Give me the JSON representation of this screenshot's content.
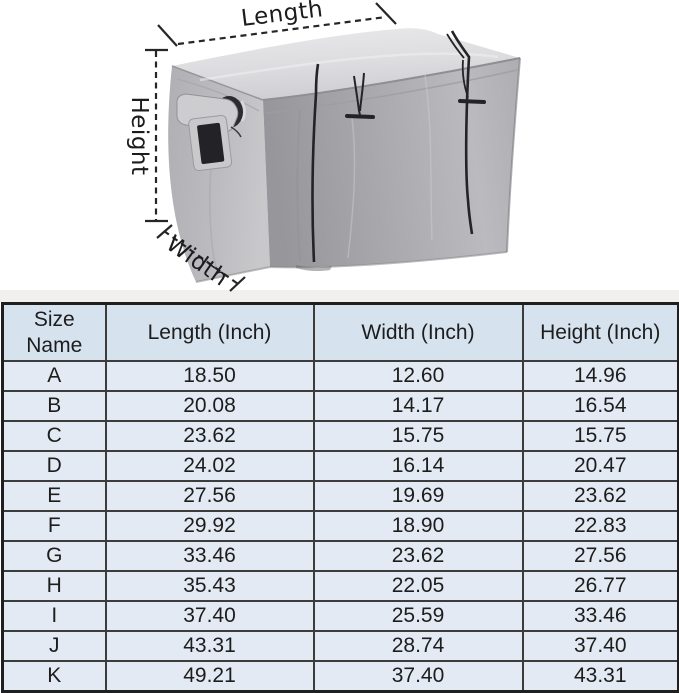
{
  "figure": {
    "length_label": "Length",
    "height_label": "Height",
    "width_label": "Width"
  },
  "size_table": {
    "headers": [
      "Size Name",
      "Length (Inch)",
      "Width (Inch)",
      "Height (Inch)"
    ],
    "rows": [
      [
        "A",
        "18.50",
        "12.60",
        "14.96"
      ],
      [
        "B",
        "20.08",
        "14.17",
        "16.54"
      ],
      [
        "C",
        "23.62",
        "15.75",
        "15.75"
      ],
      [
        "D",
        "24.02",
        "16.14",
        "20.47"
      ],
      [
        "E",
        "27.56",
        "19.69",
        "23.62"
      ],
      [
        "F",
        "29.92",
        "18.90",
        "22.83"
      ],
      [
        "G",
        "33.46",
        "23.62",
        "27.56"
      ],
      [
        "H",
        "35.43",
        "22.05",
        "26.77"
      ],
      [
        "I",
        "37.40",
        "25.59",
        "33.46"
      ],
      [
        "J",
        "43.31",
        "28.74",
        "37.40"
      ],
      [
        "K",
        "49.21",
        "37.40",
        "43.31"
      ]
    ]
  },
  "colors": {
    "table_header_bg": "#d7e2ef",
    "table_row_bg": "#e3eaf3",
    "table_border": "#3c3c3c",
    "cover_gray": "#ababaf",
    "annotation_ink": "#242424"
  }
}
